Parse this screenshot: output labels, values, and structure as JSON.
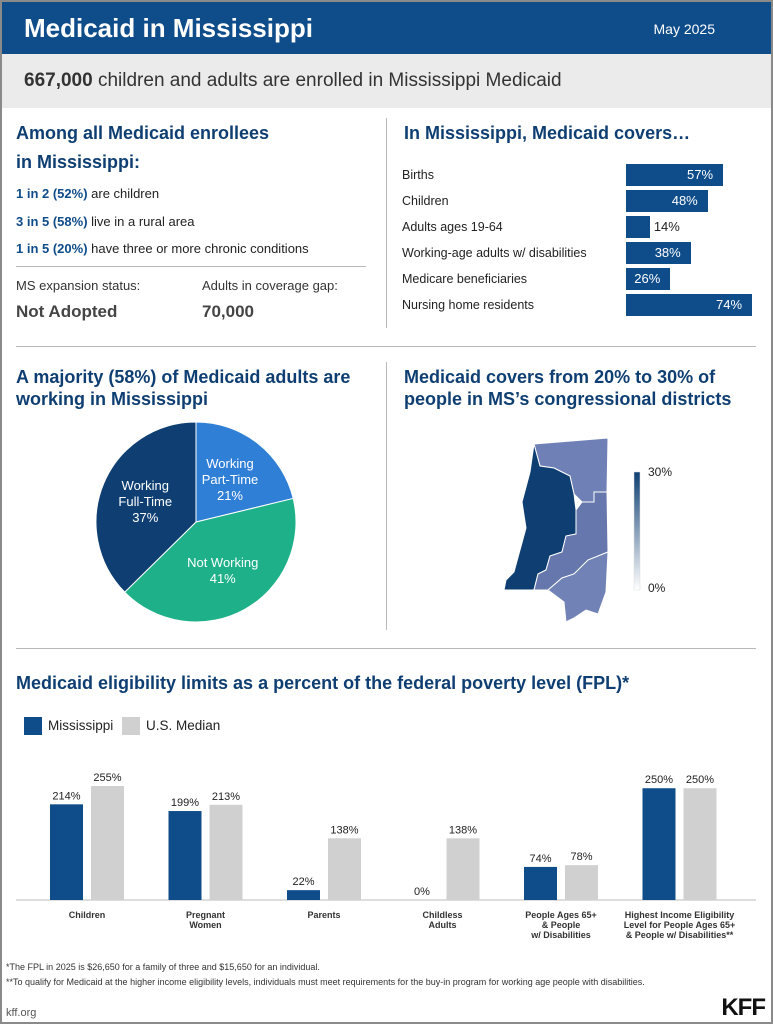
{
  "header": {
    "title": "Medicaid in Mississippi",
    "date": "May 2025"
  },
  "banner": {
    "number": "667,000",
    "text": "children and adults are enrolled in Mississippi Medicaid"
  },
  "enrollees": {
    "heading_line1": "Among all Medicaid enrollees",
    "heading_line2": "in Mississippi:",
    "stats": [
      {
        "highlight": "1 in 2 (52%)",
        "text": "are children"
      },
      {
        "highlight": "3 in 5 (58%)",
        "text": "live in a rural area"
      },
      {
        "highlight": "1 in 5 (20%)",
        "text": "have three or more chronic conditions"
      }
    ],
    "expansion_label": "MS expansion status:",
    "expansion_value": "Not Adopted",
    "gap_label": "Adults in coverage gap:",
    "gap_value": "70,000"
  },
  "chart_data": [
    {
      "type": "bar",
      "orientation": "horizontal",
      "title": "In Mississippi, Medicaid covers…",
      "categories": [
        "Births",
        "Children",
        "Adults ages 19-64",
        "Working-age adults w/ disabilities",
        "Medicare beneficiaries",
        "Nursing home residents"
      ],
      "values": [
        57,
        48,
        14,
        38,
        26,
        74
      ],
      "value_labels": [
        "57%",
        "48%",
        "14%",
        "38%",
        "26%",
        "74%"
      ],
      "color": "#0f4c8a"
    },
    {
      "type": "pie",
      "title": "A majority (58%) of Medicaid adults are working in Mississippi",
      "slices": [
        {
          "line1": "Working",
          "line2": "Part-Time",
          "label": "21%",
          "value": 21,
          "color": "#2f7fd6"
        },
        {
          "line1": "Not Working",
          "line2": "",
          "label": "41%",
          "value": 41,
          "color": "#1eb089"
        },
        {
          "line1": "Working",
          "line2": "Full-Time",
          "label": "37%",
          "value": 37,
          "color": "#0f3f72"
        }
      ]
    },
    {
      "type": "bar",
      "title": "Medicaid eligibility limits as a percent of the federal poverty level (FPL)*",
      "categories": [
        "Children",
        "Pregnant Women",
        "Parents",
        "Childless Adults",
        "People Ages 65+ & People w/ Disabilities",
        "Highest Income Eligibility Level for People Ages 65+ & People w/ Disabilities**"
      ],
      "category_lines": [
        [
          "Children"
        ],
        [
          "Pregnant",
          "Women"
        ],
        [
          "Parents"
        ],
        [
          "Childless",
          "Adults"
        ],
        [
          "People Ages 65+",
          "& People",
          "w/ Disabilities"
        ],
        [
          "Highest Income Eligibility",
          "Level for People Ages 65+",
          "& People w/ Disabilities**"
        ]
      ],
      "series": [
        {
          "name": "Mississippi",
          "values": [
            214,
            199,
            22,
            0,
            74,
            250
          ],
          "labels": [
            "214%",
            "199%",
            "22%",
            "0%",
            "74%",
            "250%"
          ],
          "color": "#0f4c8a"
        },
        {
          "name": "U.S. Median",
          "values": [
            255,
            213,
            138,
            138,
            78,
            250
          ],
          "labels": [
            "255%",
            "213%",
            "138%",
            "138%",
            "78%",
            "250%"
          ],
          "color": "#d0d0d0"
        }
      ],
      "ylim": [
        0,
        260
      ]
    }
  ],
  "map": {
    "title": "Medicaid covers from 20% to 30% of people in MS’s congressional districts",
    "legend_max": "30%",
    "legend_min": "0%",
    "colors": {
      "low": "#ffffff",
      "high": "#0f3f72",
      "d1": "#6e80b5",
      "d2": "#0f3f72",
      "d3": "#6577ad",
      "d4": "#7082b6"
    }
  },
  "footnotes": {
    "note1": "*The FPL in 2025 is $26,650 for a family of three and $15,650 for an individual.",
    "note2": "**To qualify for Medicaid at the higher income eligibility levels, individuals must meet requirements for the buy-in program for working age people with disabilities."
  },
  "brand": {
    "url": "kff.org",
    "logo_text": "KFF"
  }
}
